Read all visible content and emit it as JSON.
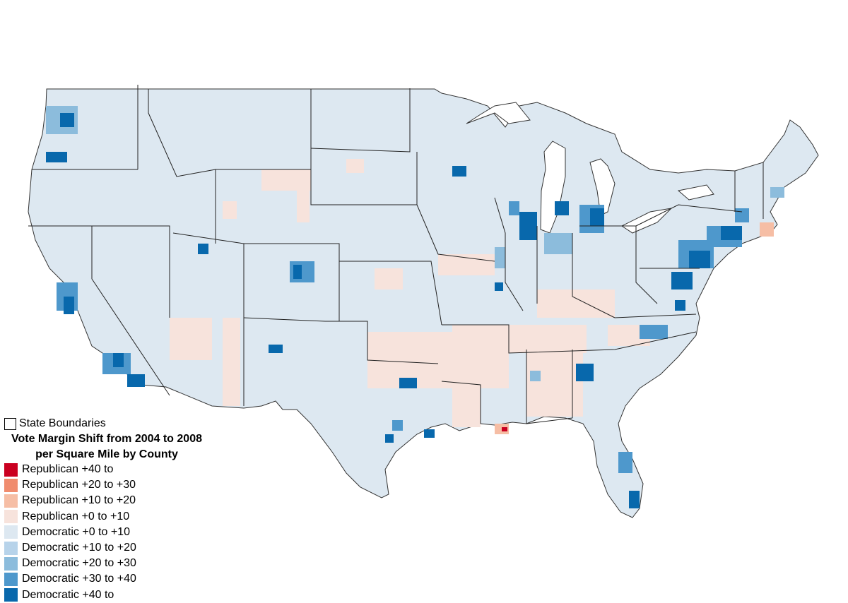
{
  "legend": {
    "boundary_label": "State Boundaries",
    "title_line1": "Vote Margin Shift from 2004 to 2008",
    "title_line2": "per Square Mile by County",
    "items": [
      {
        "label": "Republican +40 to",
        "color": "#ca0020"
      },
      {
        "label": "Republican +20 to +30",
        "color": "#f08c6e"
      },
      {
        "label": "Republican +10 to +20",
        "color": "#f6bea5"
      },
      {
        "label": "Republican +0 to +10",
        "color": "#f7e3dc"
      },
      {
        "label": "Democratic +0 to +10",
        "color": "#dde8f1"
      },
      {
        "label": "Democratic +10 to +20",
        "color": "#b7d3ea"
      },
      {
        "label": "Democratic +20 to +30",
        "color": "#8cbcdc"
      },
      {
        "label": "Democratic +30 to +40",
        "color": "#4e98cc"
      },
      {
        "label": "Democratic +40 to",
        "color": "#0868ac"
      }
    ]
  },
  "map": {
    "base_color": "#dde8f1",
    "boundary_color": "#222222",
    "lake_color": "#ffffff"
  }
}
